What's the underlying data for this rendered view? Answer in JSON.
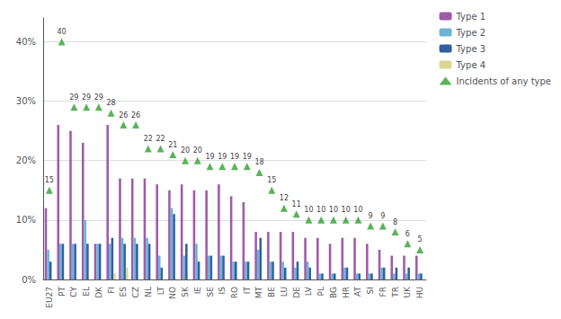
{
  "chart_data": {
    "type": "bar",
    "categories": [
      "EU27",
      "PT",
      "CY",
      "EL",
      "DK",
      "FI",
      "ES",
      "CZ",
      "NL",
      "LT",
      "NO",
      "SK",
      "IE",
      "SE",
      "IS",
      "RO",
      "IT",
      "MT",
      "BE",
      "LU",
      "DE",
      "LV",
      "PL",
      "BG",
      "HR",
      "AT",
      "SI",
      "FR",
      "TR",
      "UK",
      "HU"
    ],
    "series": [
      {
        "name": "Type 1",
        "color": "#a05aaa",
        "values": [
          12,
          26,
          25,
          23,
          6,
          26,
          17,
          17,
          17,
          16,
          15,
          16,
          15,
          15,
          16,
          14,
          13,
          8,
          8,
          8,
          8,
          7,
          7,
          6,
          7,
          7,
          6,
          5,
          4,
          4,
          4
        ]
      },
      {
        "name": "Type 2",
        "color": "#6ab4d8",
        "values": [
          5,
          6,
          6,
          10,
          6,
          6,
          7,
          7,
          7,
          4,
          12,
          4,
          6,
          4,
          4,
          3,
          3,
          5,
          3,
          3,
          2,
          3,
          1,
          1,
          2,
          1,
          1,
          2,
          1,
          1,
          1
        ]
      },
      {
        "name": "Type 3",
        "color": "#3060a0",
        "values": [
          3,
          6,
          6,
          6,
          6,
          7,
          6,
          6,
          6,
          2,
          11,
          6,
          3,
          4,
          4,
          3,
          3,
          7,
          3,
          2,
          3,
          2,
          1,
          1,
          2,
          1,
          1,
          2,
          2,
          2,
          1
        ]
      },
      {
        "name": "Type 4",
        "color": "#d8d890",
        "values": [
          0,
          0,
          0,
          0,
          0,
          1,
          2,
          0,
          0,
          0,
          0,
          0,
          0,
          0,
          0,
          0,
          0,
          0,
          0,
          0,
          0,
          0,
          0,
          0,
          0,
          0,
          0,
          0,
          0,
          0,
          0
        ]
      },
      {
        "name": "Incidents of any type",
        "type": "scatter",
        "marker": "triangle",
        "color": "#30a030",
        "data_labels": true,
        "values": [
          15,
          40,
          29,
          29,
          29,
          28,
          26,
          26,
          22,
          22,
          21,
          20,
          20,
          19,
          19,
          19,
          19,
          18,
          15,
          12,
          11,
          10,
          10,
          10,
          10,
          10,
          9,
          9,
          8,
          6,
          5
        ]
      }
    ],
    "ylim": [
      0,
      44
    ],
    "yticks": [
      {
        "value": 0,
        "label": "0%"
      },
      {
        "value": 10,
        "label": "10%"
      },
      {
        "value": 20,
        "label": "20%"
      },
      {
        "value": 30,
        "label": "30%"
      },
      {
        "value": 40,
        "label": "40%"
      }
    ],
    "grid": true,
    "legend": "upper right"
  }
}
